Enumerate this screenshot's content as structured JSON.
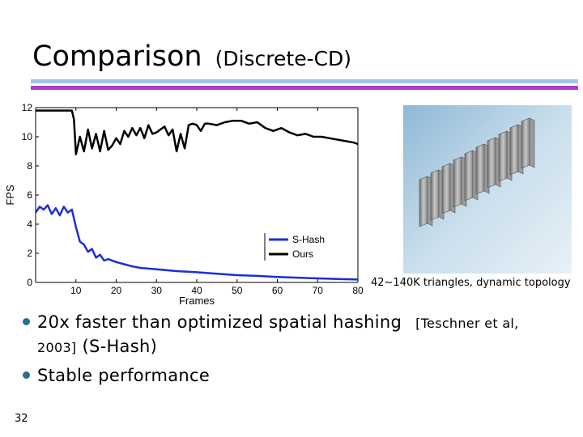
{
  "slide": {
    "title": "Comparison",
    "subtitle": "(Discrete-CD)",
    "caption": "42~140K triangles, dynamic topology",
    "bullets": [
      {
        "main": "20x faster than optimized spatial hashing",
        "ref": "[Teschner et al,",
        "ref_year": "2003]",
        "tail": "(S-Hash)"
      },
      {
        "main": "Stable performance"
      }
    ],
    "slide_number": "32"
  },
  "colors": {
    "title_rule_top": "#9fc5e8",
    "title_rule_bottom": "#b23bc9",
    "shash": "#1a2fd6",
    "ours": "#000000",
    "bullet": "#2a6f8a"
  },
  "chart_data": {
    "type": "line",
    "xlabel": "Frames",
    "ylabel": "FPS",
    "xlim": [
      0,
      80
    ],
    "ylim": [
      0,
      12
    ],
    "xticks": [
      10,
      20,
      30,
      40,
      50,
      60,
      70,
      80
    ],
    "yticks": [
      0,
      2,
      4,
      6,
      8,
      10,
      12
    ],
    "grid": false,
    "legend": "bottom-right",
    "series": [
      {
        "name": "S-Hash",
        "color": "#1a2fd6",
        "points": [
          [
            0,
            4.8
          ],
          [
            1,
            5.2
          ],
          [
            2,
            5.0
          ],
          [
            3,
            5.3
          ],
          [
            4,
            4.7
          ],
          [
            5,
            5.1
          ],
          [
            6,
            4.6
          ],
          [
            7,
            5.2
          ],
          [
            8,
            4.8
          ],
          [
            9,
            5.0
          ],
          [
            10,
            3.8
          ],
          [
            11,
            2.8
          ],
          [
            12,
            2.6
          ],
          [
            13,
            2.1
          ],
          [
            14,
            2.3
          ],
          [
            15,
            1.7
          ],
          [
            16,
            1.9
          ],
          [
            17,
            1.5
          ],
          [
            18,
            1.6
          ],
          [
            20,
            1.4
          ],
          [
            22,
            1.25
          ],
          [
            24,
            1.1
          ],
          [
            26,
            1.0
          ],
          [
            28,
            0.95
          ],
          [
            30,
            0.9
          ],
          [
            35,
            0.78
          ],
          [
            40,
            0.7
          ],
          [
            45,
            0.6
          ],
          [
            50,
            0.5
          ],
          [
            55,
            0.45
          ],
          [
            60,
            0.38
          ],
          [
            65,
            0.33
          ],
          [
            70,
            0.28
          ],
          [
            75,
            0.24
          ],
          [
            80,
            0.2
          ]
        ]
      },
      {
        "name": "Ours",
        "color": "#000000",
        "points": [
          [
            0,
            11.8
          ],
          [
            3,
            11.8
          ],
          [
            6,
            11.8
          ],
          [
            9,
            11.8
          ],
          [
            9.5,
            11.2
          ],
          [
            10,
            8.8
          ],
          [
            11,
            10.0
          ],
          [
            12,
            9.0
          ],
          [
            13,
            10.5
          ],
          [
            14,
            9.2
          ],
          [
            15,
            10.2
          ],
          [
            16,
            9.0
          ],
          [
            17,
            10.4
          ],
          [
            18,
            9.1
          ],
          [
            19,
            9.4
          ],
          [
            20,
            9.9
          ],
          [
            21,
            9.5
          ],
          [
            22,
            10.4
          ],
          [
            23,
            10.0
          ],
          [
            24,
            10.6
          ],
          [
            25,
            10.1
          ],
          [
            26,
            10.6
          ],
          [
            27,
            9.9
          ],
          [
            28,
            10.8
          ],
          [
            29,
            10.2
          ],
          [
            30,
            10.3
          ],
          [
            31,
            10.5
          ],
          [
            32,
            10.7
          ],
          [
            33,
            10.1
          ],
          [
            34,
            10.5
          ],
          [
            35,
            9.0
          ],
          [
            36,
            10.2
          ],
          [
            37,
            9.2
          ],
          [
            38,
            10.8
          ],
          [
            39,
            10.9
          ],
          [
            40,
            10.8
          ],
          [
            41,
            10.4
          ],
          [
            42,
            10.9
          ],
          [
            43,
            10.9
          ],
          [
            45,
            10.8
          ],
          [
            47,
            11.0
          ],
          [
            49,
            11.1
          ],
          [
            51,
            11.1
          ],
          [
            53,
            10.9
          ],
          [
            55,
            11.0
          ],
          [
            57,
            10.6
          ],
          [
            59,
            10.4
          ],
          [
            61,
            10.6
          ],
          [
            63,
            10.3
          ],
          [
            65,
            10.1
          ],
          [
            67,
            10.2
          ],
          [
            69,
            10.0
          ],
          [
            71,
            10.0
          ],
          [
            73,
            9.9
          ],
          [
            75,
            9.8
          ],
          [
            77,
            9.7
          ],
          [
            79,
            9.6
          ],
          [
            80,
            9.5
          ]
        ]
      }
    ]
  },
  "image": {
    "icon": "folded-sheets-render-icon"
  }
}
